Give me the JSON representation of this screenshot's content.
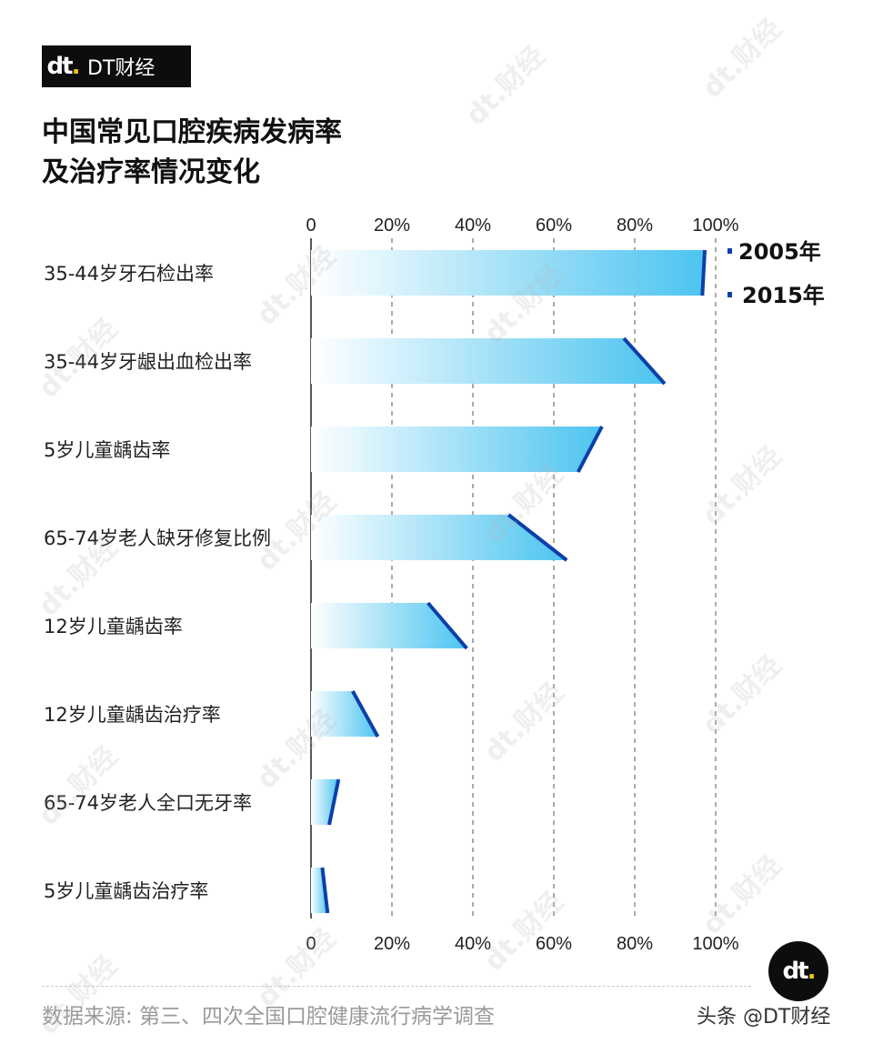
{
  "brand": {
    "logo_mark": "dt",
    "logo_text": "DT财经",
    "watermark": "dt.财经"
  },
  "title_lines": [
    "中国常见口腔疾病发病率",
    "及治疗率情况变化"
  ],
  "source": "数据来源: 第三、四次全国口腔健康流行病学调查",
  "credit": "头条 @DT财经",
  "colors": {
    "bar_start": "#ffffff",
    "bar_end": "#4cc4f0",
    "change_line": "#0d3fa8",
    "grid": "#555555",
    "axis": "#222222"
  },
  "chart_data": {
    "type": "bar",
    "orientation": "horizontal",
    "xlim": [
      0,
      100
    ],
    "ticks": [
      "0",
      "20%",
      "40%",
      "60%",
      "80%",
      "100%"
    ],
    "tick_values": [
      0,
      20,
      40,
      60,
      80,
      100
    ],
    "grid": true,
    "legend_position": "top-right",
    "categories": [
      "35-44岁牙石检出率",
      "35-44岁牙龈出血检出率",
      "5岁儿童龋齿率",
      "65-74岁老人缺牙修复比例",
      "12岁儿童龋齿率",
      "12岁儿童龋齿治疗率",
      "65-74岁老人全口无牙率",
      "5岁儿童龋齿治疗率"
    ],
    "series": [
      {
        "name": "2005年",
        "values": [
          97.3,
          77.3,
          71.9,
          48.8,
          28.9,
          10.3,
          6.8,
          2.8
        ]
      },
      {
        "name": "2015年",
        "values": [
          96.7,
          87.4,
          66.0,
          63.2,
          38.5,
          16.5,
          4.5,
          4.1
        ]
      }
    ]
  }
}
